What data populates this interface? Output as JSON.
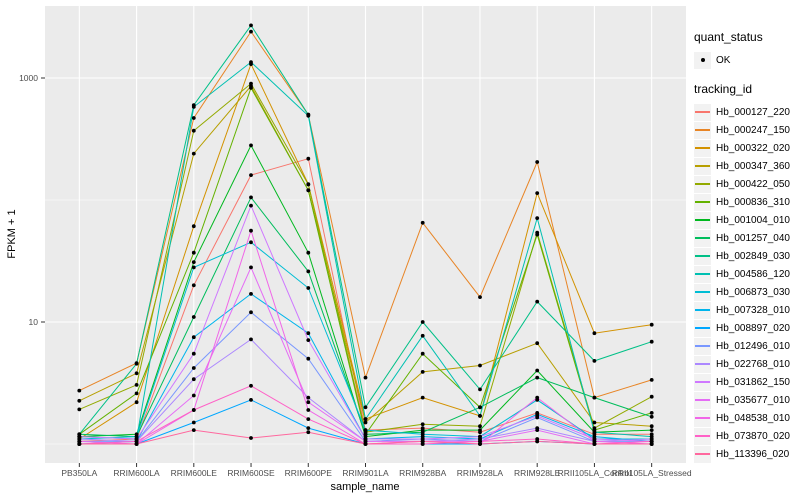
{
  "legend": {
    "quant_status_title": "quant_status",
    "quant_status_ok": "OK",
    "tracking_id_title": "tracking_id"
  },
  "style": {
    "panel_bg": "#EBEBEB",
    "grid": "#FFFFFF",
    "key_bg": "#F2F2F2",
    "axis_text": "#4D4D4D",
    "tick_mark": "#333333",
    "point": "#000000"
  },
  "chart_data": {
    "type": "line",
    "title": "",
    "xlabel": "sample_name",
    "ylabel": "FPKM + 1",
    "y_scale": "log10",
    "y_ticks": [
      10,
      1000
    ],
    "y_minor": [
      1,
      100
    ],
    "ylim_log": [
      -0.17,
      3.6
    ],
    "grid": "on",
    "legend_position": "right",
    "point_shape": "filled-circle-black",
    "categories": [
      "PB350LA",
      "RRIM600LA",
      "RRIM600LE",
      "RRIM600SE",
      "RRIM600PE",
      "RRIM901LA",
      "RRIM928BA",
      "RRIM928LA",
      "RRIM928LE",
      "RRII105LA_Control",
      "RRII105LA_Stressed"
    ],
    "series": [
      {
        "name": "Hb_000127_220",
        "color": "#F8766D",
        "values": [
          1.05,
          1.1,
          20,
          160,
          218,
          1.3,
          1.35,
          1.25,
          1.8,
          1.2,
          1.2
        ]
      },
      {
        "name": "Hb_000247_150",
        "color": "#E88526",
        "values": [
          2.74,
          4.6,
          470,
          2400,
          500,
          3.5,
          65,
          16,
          205,
          2.4,
          3.35
        ]
      },
      {
        "name": "Hb_000322_020",
        "color": "#D39200",
        "values": [
          1.1,
          2.2,
          61,
          1300,
          135,
          1.6,
          2.4,
          1.7,
          114,
          8.1,
          9.5
        ]
      },
      {
        "name": "Hb_000347_360",
        "color": "#B79F00",
        "values": [
          2.26,
          3.8,
          240,
          860,
          120,
          1.5,
          3.9,
          4.4,
          6.7,
          1.5,
          1.4
        ]
      },
      {
        "name": "Hb_000422_050",
        "color": "#93AA00",
        "values": [
          1.92,
          3.05,
          370,
          900,
          134,
          1.25,
          1.45,
          1.4,
          54,
          1.35,
          2.44
        ]
      },
      {
        "name": "Hb_000836_310",
        "color": "#64B200",
        "values": [
          1.2,
          2.6,
          37,
          830,
          120,
          1.2,
          5.5,
          2.0,
          52,
          1.3,
          1.8
        ]
      },
      {
        "name": "Hb_001004_010",
        "color": "#00B81F",
        "values": [
          1.15,
          1.2,
          31,
          280,
          37,
          1.15,
          1.3,
          1.3,
          4.0,
          1.25,
          1.3
        ]
      },
      {
        "name": "Hb_001257_040",
        "color": "#00BD5C",
        "values": [
          1.2,
          1.15,
          11,
          105,
          26,
          1.2,
          1.25,
          2.0,
          3.5,
          2.4,
          1.67
        ]
      },
      {
        "name": "Hb_002849_030",
        "color": "#00C087",
        "values": [
          1.2,
          4.55,
          600,
          2700,
          500,
          2.0,
          10.0,
          2.8,
          14.7,
          4.8,
          6.9
        ]
      },
      {
        "name": "Hb_004586_120",
        "color": "#00C0B2",
        "values": [
          1.15,
          1.1,
          580,
          1350,
          490,
          1.6,
          7.7,
          1.7,
          71,
          1.25,
          1.15
        ]
      },
      {
        "name": "Hb_006873_030",
        "color": "#00BDD4",
        "values": [
          1.1,
          1.15,
          28,
          45,
          19,
          1.3,
          1.2,
          1.15,
          2.3,
          1.1,
          1.1
        ]
      },
      {
        "name": "Hb_007328_010",
        "color": "#00B5EC",
        "values": [
          1.0,
          1.05,
          7.5,
          17,
          8.1,
          1.1,
          1.15,
          1.1,
          1.75,
          1.15,
          1.05
        ]
      },
      {
        "name": "Hb_008897_020",
        "color": "#00A7FF",
        "values": [
          1.0,
          1.0,
          1.5,
          2.3,
          1.35,
          1.0,
          1.0,
          1.0,
          1.05,
          1.0,
          1.0
        ]
      },
      {
        "name": "Hb_012496_010",
        "color": "#7997FF",
        "values": [
          1.05,
          1.05,
          4.2,
          12,
          5.0,
          1.05,
          1.1,
          1.05,
          1.65,
          1.05,
          1.05
        ]
      },
      {
        "name": "Hb_022768_010",
        "color": "#AC88FF",
        "values": [
          1.1,
          1.05,
          3.4,
          7.2,
          2.4,
          1.05,
          1.05,
          1.1,
          1.35,
          1.05,
          1.1
        ]
      },
      {
        "name": "Hb_031862_150",
        "color": "#CF78FF",
        "values": [
          1.15,
          1.1,
          5.5,
          90,
          7.1,
          1.1,
          1.1,
          1.15,
          1.7,
          1.1,
          1.05
        ]
      },
      {
        "name": "Hb_035677_010",
        "color": "#E56DF5",
        "values": [
          1.0,
          1.0,
          2.5,
          28,
          2.2,
          1.05,
          1.05,
          1.05,
          1.3,
          1.0,
          1.0
        ]
      },
      {
        "name": "Hb_048538_010",
        "color": "#F166E8",
        "values": [
          1.05,
          1.0,
          1.9,
          56,
          1.9,
          1.0,
          1.05,
          1.0,
          2.4,
          1.05,
          1.0
        ]
      },
      {
        "name": "Hb_073870_020",
        "color": "#FF61C7",
        "values": [
          1.0,
          1.05,
          1.9,
          3.0,
          1.6,
          1.0,
          1.0,
          1.05,
          1.1,
          1.0,
          1.05
        ]
      },
      {
        "name": "Hb_113396_020",
        "color": "#FF689E",
        "values": [
          1.0,
          1.0,
          1.3,
          1.12,
          1.25,
          1.0,
          1.05,
          1.0,
          1.05,
          1.0,
          1.0
        ]
      }
    ]
  }
}
